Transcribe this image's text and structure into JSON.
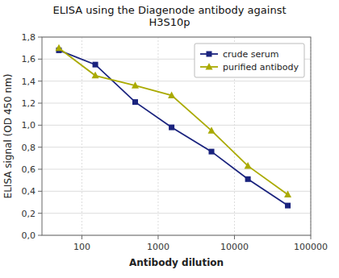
{
  "chart_data": {
    "type": "line",
    "title": "ELISA using the Diagenode antibody against\nH3S10p",
    "x_label": "Antibody dilution",
    "y_label": "ELISA signal (OD 450 nm)",
    "x": [
      50,
      150,
      500,
      1500,
      5000,
      15000,
      50000
    ],
    "series": [
      {
        "name": "crude serum",
        "color": "#1a237e",
        "marker": "square",
        "values": [
          1.68,
          1.55,
          1.21,
          0.98,
          0.76,
          0.51,
          0.27
        ]
      },
      {
        "name": "purified antibody",
        "color": "#aaaa00",
        "marker": "triangle",
        "values": [
          1.7,
          1.45,
          1.36,
          1.27,
          0.95,
          0.63,
          0.37
        ]
      }
    ],
    "log": "x",
    "xlim": [
      30,
      100000
    ],
    "xticks": [
      100,
      1000,
      10000,
      100000
    ],
    "ylim": [
      0.0,
      1.8
    ],
    "yticks": [
      {
        "value": 0.0,
        "label": "0,0"
      },
      {
        "value": 0.2,
        "label": "0,2"
      },
      {
        "value": 0.4,
        "label": "0,4"
      },
      {
        "value": 0.6,
        "label": "0,6"
      },
      {
        "value": 0.8,
        "label": "0,8"
      },
      {
        "value": 1.0,
        "label": "1,0"
      },
      {
        "value": 1.2,
        "label": "1,2"
      },
      {
        "value": 1.4,
        "label": "1,4"
      },
      {
        "value": 1.6,
        "label": "1,6"
      },
      {
        "value": 1.8,
        "label": "1,8"
      }
    ],
    "grid": true,
    "legend": "upper right"
  }
}
